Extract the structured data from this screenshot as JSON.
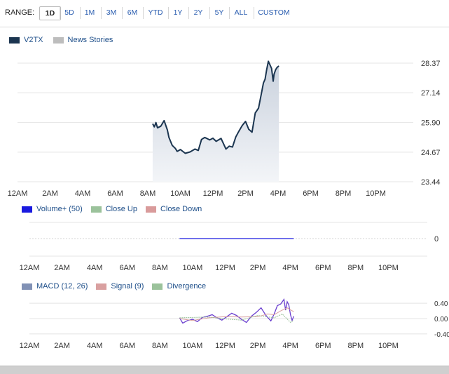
{
  "range": {
    "label": "RANGE:",
    "options": [
      "1D",
      "5D",
      "1M",
      "3M",
      "6M",
      "YTD",
      "1Y",
      "2Y",
      "5Y",
      "ALL",
      "CUSTOM"
    ],
    "active": "1D"
  },
  "colors": {
    "price_line": "#1b3550",
    "price_fill": "#e6eaf0",
    "news": "#bdbdbd",
    "volume": "#1a1adf",
    "close_up": "#9bc29b",
    "close_down": "#d99b9b",
    "macd": "#8191b5",
    "signal": "#d9a0a0",
    "divergence": "#9bc29b",
    "link": "#1d4e89"
  },
  "legend_main": [
    {
      "label": "V2TX",
      "color": "#1b3550"
    },
    {
      "label": "News Stories",
      "color": "#bdbdbd"
    }
  ],
  "legend_volume": [
    {
      "label": "Volume+ (50)",
      "color": "#1a1adf"
    },
    {
      "label": "Close Up",
      "color": "#9bc29b"
    },
    {
      "label": "Close Down",
      "color": "#d99b9b"
    }
  ],
  "legend_macd": [
    {
      "label": "MACD (12, 26)",
      "color": "#8191b5"
    },
    {
      "label": "Signal (9)",
      "color": "#d9a0a0"
    },
    {
      "label": "Divergence",
      "color": "#9bc29b"
    }
  ],
  "chart_data": [
    {
      "type": "area",
      "title": "V2TX",
      "x_ticks": [
        "12AM",
        "2AM",
        "4AM",
        "6AM",
        "8AM",
        "10AM",
        "12PM",
        "2PM",
        "4PM",
        "6PM",
        "8PM",
        "10PM"
      ],
      "y_ticks": [
        "28.37",
        "27.14",
        "25.90",
        "24.67",
        "23.44"
      ],
      "ylim": [
        23.44,
        28.37
      ],
      "xlim_hours": [
        0,
        24
      ],
      "series": [
        {
          "name": "V2TX",
          "x": [
            8.3,
            8.4,
            8.5,
            8.6,
            8.8,
            9.0,
            9.2,
            9.3,
            9.5,
            9.7,
            9.8,
            10.0,
            10.3,
            10.6,
            10.9,
            11.1,
            11.3,
            11.5,
            11.8,
            12.0,
            12.2,
            12.5,
            12.8,
            13.0,
            13.2,
            13.4,
            13.6,
            13.8,
            14.0,
            14.2,
            14.4,
            14.6,
            14.8,
            15.0,
            15.1,
            15.2,
            15.3,
            15.4,
            15.5,
            15.6,
            15.7,
            15.75,
            15.85,
            15.95,
            16.05
          ],
          "y": [
            25.85,
            25.72,
            25.9,
            25.68,
            25.75,
            25.98,
            25.6,
            25.28,
            24.95,
            24.82,
            24.7,
            24.78,
            24.62,
            24.68,
            24.8,
            24.74,
            25.2,
            25.28,
            25.18,
            25.25,
            25.12,
            25.24,
            24.8,
            24.92,
            24.88,
            25.3,
            25.55,
            25.78,
            25.95,
            25.62,
            25.5,
            26.3,
            26.5,
            27.2,
            27.55,
            27.7,
            28.1,
            28.45,
            28.3,
            28.15,
            27.62,
            27.9,
            28.1,
            28.2,
            28.25
          ]
        }
      ]
    },
    {
      "type": "bar",
      "title": "Volume+ (50)",
      "x_ticks": [
        "12AM",
        "2AM",
        "4AM",
        "6AM",
        "8AM",
        "10AM",
        "12PM",
        "2PM",
        "4PM",
        "6PM",
        "8PM",
        "10PM"
      ],
      "y_ticks": [
        "0"
      ],
      "series": [
        {
          "name": "Volume+ (50)",
          "x_start": 9.2,
          "x_end": 16.2,
          "value": 0
        }
      ]
    },
    {
      "type": "line",
      "title": "MACD",
      "x_ticks": [
        "12AM",
        "2AM",
        "4AM",
        "6AM",
        "8AM",
        "10AM",
        "12PM",
        "2PM",
        "4PM",
        "6PM",
        "8PM",
        "10PM"
      ],
      "y_ticks": [
        "0.40",
        "0.00",
        "-0.40"
      ],
      "y_tick_labels": [
        "0.4\u0000",
        "0.0\u0000",
        "-0.4\u0000"
      ],
      "ylim": [
        -0.55,
        0.55
      ],
      "series": [
        {
          "name": "MACD (12, 26)",
          "x": [
            9.2,
            9.4,
            9.7,
            10.0,
            10.3,
            10.6,
            10.9,
            11.2,
            11.5,
            11.8,
            12.1,
            12.4,
            12.7,
            13.0,
            13.3,
            13.6,
            13.9,
            14.2,
            14.5,
            14.8,
            15.0,
            15.2,
            15.4,
            15.6,
            15.7,
            15.8,
            15.9,
            16.0,
            16.1,
            16.2
          ],
          "y": [
            0.02,
            -0.12,
            -0.05,
            -0.02,
            -0.08,
            0.03,
            0.06,
            0.1,
            0.02,
            -0.04,
            0.05,
            0.14,
            0.08,
            -0.02,
            -0.1,
            0.06,
            0.16,
            0.28,
            0.08,
            -0.06,
            0.12,
            0.34,
            0.38,
            0.5,
            0.22,
            0.44,
            0.36,
            0.1,
            -0.05,
            0.06
          ]
        },
        {
          "name": "Signal (9)",
          "x": [
            9.2,
            10.0,
            11.0,
            12.0,
            13.0,
            14.0,
            14.6,
            15.0,
            15.4,
            15.8,
            16.2
          ],
          "y": [
            0.0,
            -0.05,
            0.02,
            0.05,
            0.04,
            0.05,
            0.12,
            0.1,
            0.2,
            0.28,
            0.18
          ]
        },
        {
          "name": "Divergence",
          "x": [
            9.2,
            10.0,
            11.0,
            12.0,
            13.0,
            14.0,
            15.0,
            15.5,
            16.0,
            16.2
          ],
          "y": [
            0.02,
            0.03,
            0.04,
            -0.01,
            -0.04,
            0.08,
            0.02,
            0.12,
            -0.1,
            -0.05
          ]
        }
      ]
    }
  ]
}
